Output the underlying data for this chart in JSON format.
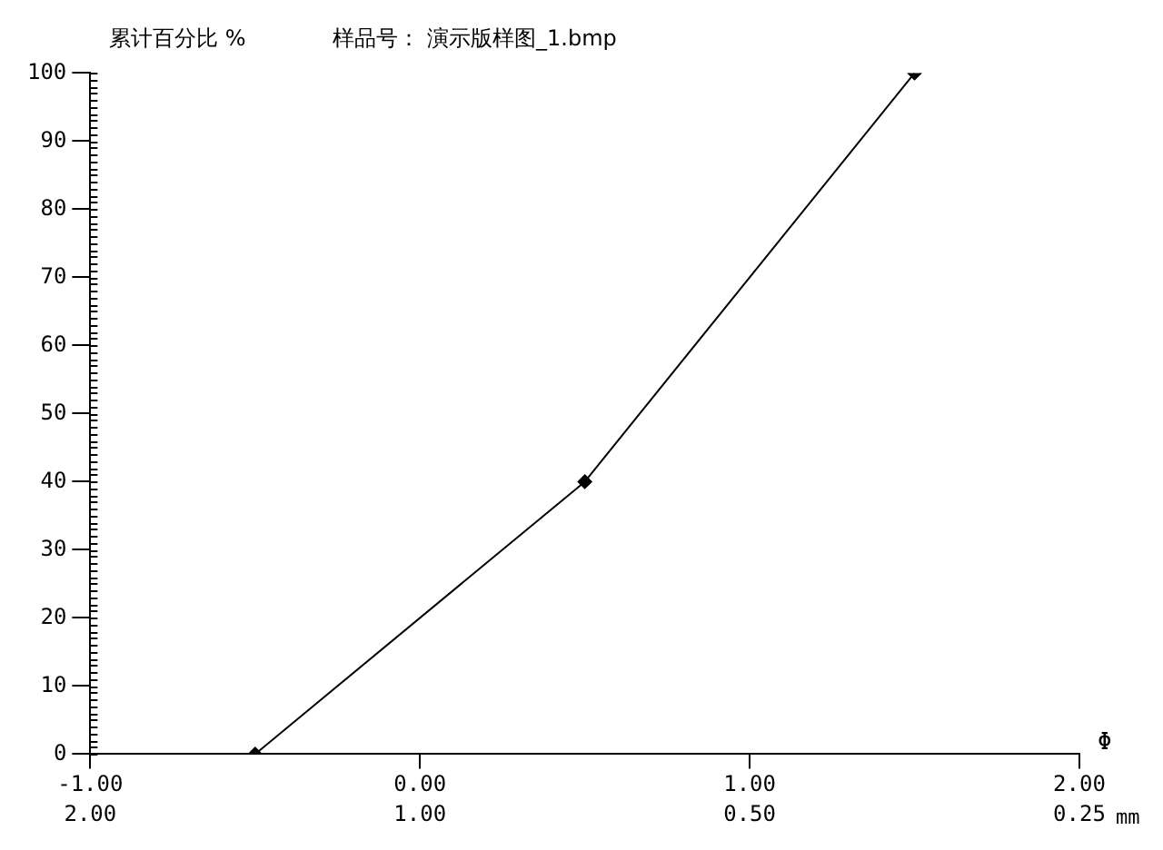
{
  "chart_data": {
    "type": "line",
    "title": "样品号： 演示版样图_1.bmp",
    "ylabel": "累计百分比 %",
    "xlabel": "Φ",
    "x2label": "mm",
    "x": [
      -0.5,
      0.5,
      1.5
    ],
    "series": [
      {
        "color": "#000000",
        "values": [
          0,
          40,
          100
        ]
      }
    ],
    "xlim": [
      -1,
      2
    ],
    "xticks": [
      {
        "value": -1,
        "label": "-1.00"
      },
      {
        "value": 0,
        "label": "0.00"
      },
      {
        "value": 1,
        "label": "1.00"
      },
      {
        "value": 2,
        "label": "2.00"
      }
    ],
    "x2lim": [
      2,
      0.25
    ],
    "x2ticks": [
      {
        "value": 2,
        "label": "2.00"
      },
      {
        "value": 1,
        "label": "1.00"
      },
      {
        "value": 0.5,
        "label": "0.50"
      },
      {
        "value": 0.25,
        "label": "0.25"
      }
    ],
    "log": "x2",
    "ylim": [
      0,
      100
    ],
    "yticks": [
      0,
      10,
      20,
      30,
      40,
      50,
      60,
      70,
      80,
      90,
      100
    ],
    "grid": false,
    "legend": false,
    "marker": "diamond",
    "line_style": "solid"
  }
}
